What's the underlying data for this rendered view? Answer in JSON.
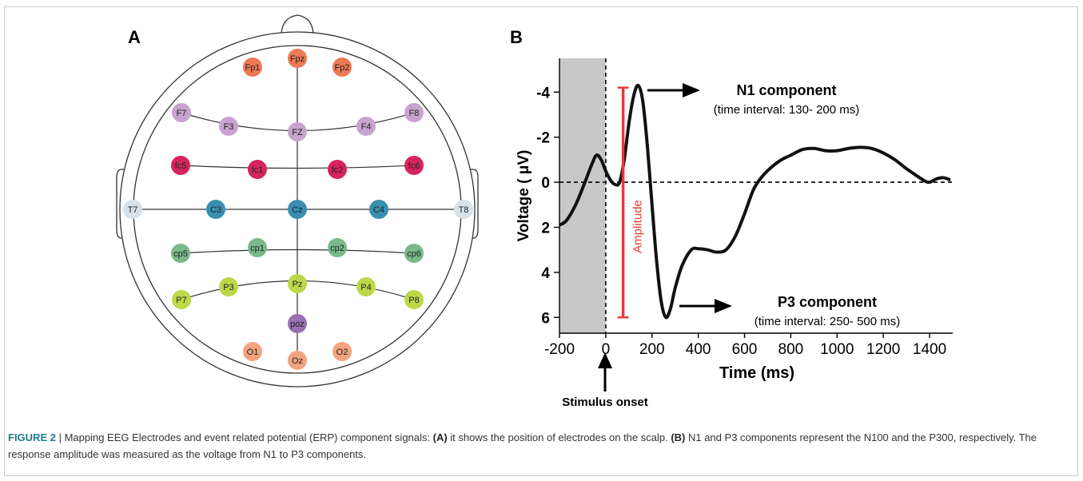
{
  "panel_a": {
    "letter": "A",
    "electrodes": [
      {
        "label": "Fpz",
        "color": "#ee7a55"
      },
      {
        "label": "Fp1",
        "color": "#ee7a55"
      },
      {
        "label": "Fp2",
        "color": "#ee7a55"
      },
      {
        "label": "F7",
        "color": "#c9a3cf"
      },
      {
        "label": "F3",
        "color": "#c9a3cf"
      },
      {
        "label": "FZ",
        "color": "#c9a3cf"
      },
      {
        "label": "F4",
        "color": "#c9a3cf"
      },
      {
        "label": "F8",
        "color": "#c9a3cf"
      },
      {
        "label": "fc5",
        "color": "#d6245c"
      },
      {
        "label": "fc1",
        "color": "#d6245c"
      },
      {
        "label": "fc2",
        "color": "#d6245c"
      },
      {
        "label": "fc6",
        "color": "#d6245c"
      },
      {
        "label": "T7",
        "color": "#d7e1ea"
      },
      {
        "label": "C3",
        "color": "#3a8fb0"
      },
      {
        "label": "Cz",
        "color": "#3a8fb0"
      },
      {
        "label": "C4",
        "color": "#3a8fb0"
      },
      {
        "label": "T8",
        "color": "#d7e1ea"
      },
      {
        "label": "cp5",
        "color": "#79b98a"
      },
      {
        "label": "cp1",
        "color": "#79b98a"
      },
      {
        "label": "cp2",
        "color": "#79b98a"
      },
      {
        "label": "cp6",
        "color": "#79b98a"
      },
      {
        "label": "P7",
        "color": "#bcd84a"
      },
      {
        "label": "P3",
        "color": "#bcd84a"
      },
      {
        "label": "Pz",
        "color": "#bcd84a"
      },
      {
        "label": "P4",
        "color": "#bcd84a"
      },
      {
        "label": "P8",
        "color": "#bcd84a"
      },
      {
        "label": "poz",
        "color": "#9b6fb0"
      },
      {
        "label": "O1",
        "color": "#f2a47e"
      },
      {
        "label": "Oz",
        "color": "#f2a47e"
      },
      {
        "label": "O2",
        "color": "#f2a47e"
      }
    ]
  },
  "panel_b": {
    "letter": "B",
    "n1_title": "N1 component",
    "n1_interval": "(time interval: 130- 200 ms)",
    "p3_title": "P3 component",
    "p3_interval": "(time interval: 250- 500 ms)",
    "amplitude_label": "Amplitude",
    "stimulus_label": "Stimulus onset",
    "amplitude_color": "#e53935"
  },
  "chart_data": {
    "type": "line",
    "xlabel": "Time (ms)",
    "ylabel": "Voltage ( μV)",
    "xlim": [
      -200,
      1500
    ],
    "ylim": [
      6.7,
      -5.5
    ],
    "y_inverted": true,
    "x_ticks": [
      -200,
      0,
      200,
      400,
      600,
      800,
      1000,
      1200,
      1400
    ],
    "y_ticks": [
      -4,
      -2,
      0,
      2,
      4,
      6
    ],
    "baseline_shaded_range": [
      -200,
      0
    ],
    "amplitude_bar": {
      "x": 75,
      "y_from": -4.2,
      "y_to": 6.0
    },
    "series": [
      {
        "x": [
          -200,
          -170,
          -130,
          -90,
          -60,
          -40,
          -20,
          0,
          20,
          40,
          60,
          80,
          100,
          120,
          140,
          160,
          180,
          200,
          220,
          240,
          260,
          280,
          300,
          330,
          370,
          400,
          440,
          480,
          520,
          560,
          600,
          640,
          680,
          720,
          760,
          800,
          850,
          900,
          950,
          1000,
          1050,
          1100,
          1150,
          1200,
          1250,
          1300,
          1350,
          1380,
          1400,
          1430,
          1460,
          1490
        ],
        "y": [
          1.9,
          1.7,
          1.0,
          0.0,
          -0.8,
          -1.2,
          -1.0,
          -0.5,
          -0.1,
          0.1,
          0.0,
          -1.0,
          -2.6,
          -3.8,
          -4.3,
          -3.6,
          -1.6,
          1.0,
          3.5,
          5.3,
          6.0,
          5.6,
          4.7,
          3.7,
          3.0,
          2.95,
          3.0,
          3.1,
          3.0,
          2.4,
          1.4,
          0.3,
          -0.3,
          -0.7,
          -1.0,
          -1.2,
          -1.45,
          -1.5,
          -1.4,
          -1.4,
          -1.5,
          -1.55,
          -1.5,
          -1.3,
          -1.0,
          -0.6,
          -0.25,
          -0.05,
          0.0,
          -0.15,
          -0.2,
          -0.1
        ]
      }
    ]
  },
  "caption": {
    "figure_number": "FIGURE 2",
    "separator": " | ",
    "part1": " Mapping EEG Electrodes and event related potential (ERP) component signals: ",
    "label_a": "(A)",
    "part2": " it shows the position of electrodes on the scalp. ",
    "label_b": "(B)",
    "part3": " N1 and P3 components represent the N100 and the P300, respectively. The response amplitude was measured as the voltage from N1 to P3 components."
  }
}
